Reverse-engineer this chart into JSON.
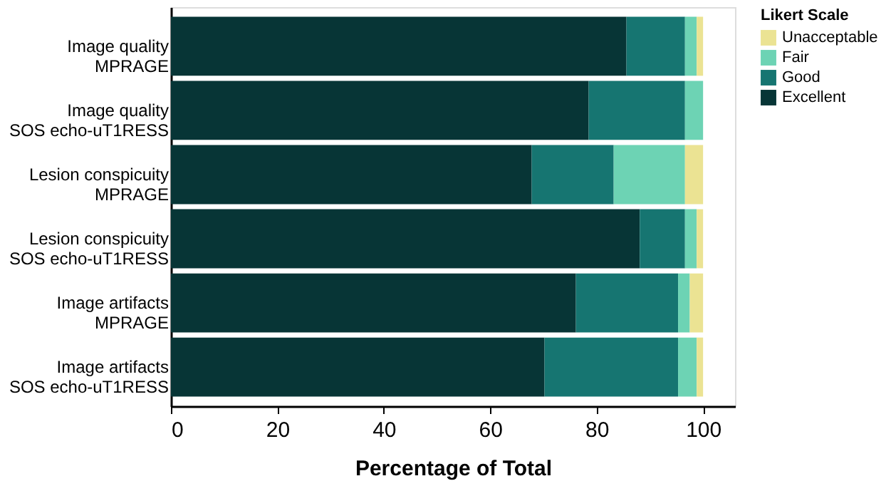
{
  "chart_data": {
    "type": "bar",
    "orientation": "horizontal",
    "stacked": true,
    "xlabel": "Percentage of Total",
    "legend_title": "Likert Scale",
    "legend": "right",
    "grid": false,
    "categories": [
      "Image quality\nMPRAGE",
      "Image quality\nSOS echo-uT1RESS",
      "Lesion conspicuity\nMPRAGE",
      "Lesion conspicuity\nSOS echo-uT1RESS",
      "Image artifacts\nMPRAGE",
      "Image artifacts\nSOS echo-uT1RESS"
    ],
    "xlim": [
      0,
      106
    ],
    "xticks": [
      0,
      20,
      40,
      60,
      80,
      100
    ],
    "series": [
      {
        "name": "Excellent",
        "color": "#073536",
        "values": [
          85.6,
          78.5,
          67.8,
          88.1,
          76.1,
          70.2
        ]
      },
      {
        "name": "Good",
        "color": "#167571",
        "values": [
          11.0,
          18.1,
          15.4,
          8.5,
          19.2,
          25.1
        ]
      },
      {
        "name": "Fair",
        "color": "#6dd3b4",
        "values": [
          2.2,
          3.4,
          13.4,
          2.2,
          2.2,
          3.5
        ]
      },
      {
        "name": "Unacceptable",
        "color": "#ebe393",
        "values": [
          1.2,
          null,
          3.4,
          1.2,
          2.5,
          1.2
        ]
      }
    ]
  }
}
